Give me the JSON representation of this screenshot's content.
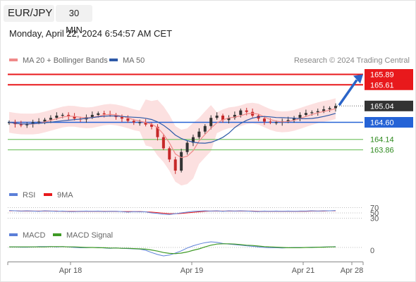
{
  "header": {
    "pair": "EUR/JPY",
    "timeframe": "30 MIN",
    "datetime": "Monday, April 22, 2024 6:54:57 AM CET"
  },
  "legend": {
    "ma20": "MA 20 + Bollinger Bands",
    "ma50": "MA 50",
    "rsi": "RSI",
    "rsi_ma": "9MA",
    "macd": "MACD",
    "macd_signal": "MACD Signal"
  },
  "copyright": "Research © 2024 Trading Central",
  "colors": {
    "resistance": "#e8191c",
    "support": "#7bc66c",
    "pivot": "#2563d6",
    "current": "#333333",
    "ma20": "#f08a8a",
    "ma50": "#2e5aa8",
    "band": "#fbd6d6",
    "bull": "#333333",
    "bear": "#c62828",
    "arrow": "#2a64c8",
    "macd": "#5b7fd8",
    "macd_signal": "#3e9a25"
  },
  "chart_data": {
    "type": "candlestick",
    "levels": [
      {
        "label": "165.89",
        "value": 165.89,
        "kind": "resistance"
      },
      {
        "label": "165.61",
        "value": 165.61,
        "kind": "resistance"
      },
      {
        "label": "165.04",
        "value": 165.04,
        "kind": "current"
      },
      {
        "label": "164.60",
        "value": 164.6,
        "kind": "pivot"
      },
      {
        "label": "164.14",
        "value": 164.14,
        "kind": "support"
      },
      {
        "label": "163.86",
        "value": 163.86,
        "kind": "support"
      }
    ],
    "arrow": {
      "from": 165.04,
      "to": 165.89
    },
    "x_ticks": [
      "Apr 18",
      "Apr 19",
      "Apr 21",
      "Apr 28"
    ],
    "rsi_ticks": [
      "70",
      "50",
      "30"
    ],
    "macd_ticks": [
      "0"
    ],
    "price_series": [
      164.6,
      164.55,
      164.52,
      164.55,
      164.6,
      164.62,
      164.67,
      164.72,
      164.78,
      164.8,
      164.76,
      164.7,
      164.68,
      164.74,
      164.8,
      164.84,
      164.82,
      164.8,
      164.74,
      164.7,
      164.64,
      164.6,
      164.6,
      164.54,
      164.48,
      164.2,
      163.9,
      163.6,
      163.3,
      163.8,
      164.05,
      164.2,
      164.35,
      164.5,
      164.72,
      164.78,
      164.66,
      164.72,
      164.8,
      164.92,
      164.88,
      164.78,
      164.7,
      164.62,
      164.6,
      164.6,
      164.63,
      164.66,
      164.72,
      164.8,
      164.85,
      164.87,
      164.9,
      164.95,
      164.98,
      165.04
    ],
    "rsi_series": [
      59,
      58,
      57,
      58,
      57,
      56,
      58,
      57,
      56,
      57,
      55,
      55,
      56,
      57,
      56,
      57,
      55,
      56,
      56,
      55,
      53,
      55,
      54,
      54,
      50,
      48,
      45,
      44,
      47,
      50,
      53,
      56,
      57,
      58,
      57,
      58,
      56,
      58,
      57,
      58,
      57,
      56,
      55,
      57,
      56,
      57,
      56,
      57,
      56,
      57,
      57,
      58,
      57,
      58,
      58,
      59
    ],
    "rsi_ma_series": [
      58,
      58,
      57,
      57,
      57,
      57,
      57,
      57,
      57,
      56,
      56,
      56,
      56,
      56,
      56,
      56,
      56,
      56,
      56,
      55,
      55,
      55,
      55,
      54,
      53,
      51,
      49,
      47,
      47,
      48,
      50,
      52,
      54,
      56,
      57,
      57,
      57,
      57,
      57,
      57,
      57,
      57,
      56,
      56,
      56,
      56,
      56,
      56,
      56,
      56,
      56,
      57,
      57,
      57,
      58,
      58
    ],
    "macd_series": [
      0.02,
      0.02,
      0.01,
      0.01,
      0.02,
      0.03,
      0.03,
      0.03,
      0.02,
      0.03,
      0.02,
      0.0,
      -0.01,
      -0.01,
      0.0,
      0.0,
      -0.02,
      -0.03,
      -0.02,
      -0.03,
      -0.04,
      -0.05,
      -0.06,
      -0.1,
      -0.18,
      -0.25,
      -0.3,
      -0.27,
      -0.2,
      -0.12,
      -0.02,
      0.06,
      0.12,
      0.17,
      0.2,
      0.18,
      0.14,
      0.12,
      0.1,
      0.08,
      0.06,
      0.04,
      0.02,
      0.0,
      -0.01,
      -0.01,
      -0.02,
      -0.01,
      0.0,
      0.0,
      0.0,
      0.01,
      0.01,
      0.02,
      0.02,
      0.03
    ],
    "macd_signal_series": [
      0.02,
      0.02,
      0.02,
      0.02,
      0.02,
      0.02,
      0.02,
      0.03,
      0.03,
      0.03,
      0.02,
      0.02,
      0.01,
      0.0,
      0.0,
      -0.01,
      -0.01,
      -0.02,
      -0.02,
      -0.03,
      -0.03,
      -0.04,
      -0.05,
      -0.06,
      -0.09,
      -0.13,
      -0.18,
      -0.21,
      -0.22,
      -0.2,
      -0.16,
      -0.1,
      -0.05,
      0.02,
      0.08,
      0.12,
      0.13,
      0.13,
      0.12,
      0.1,
      0.08,
      0.07,
      0.05,
      0.03,
      0.02,
      0.01,
      0.0,
      -0.01,
      -0.01,
      -0.01,
      0.0,
      0.0,
      0.01,
      0.01,
      0.02,
      0.02
    ]
  }
}
